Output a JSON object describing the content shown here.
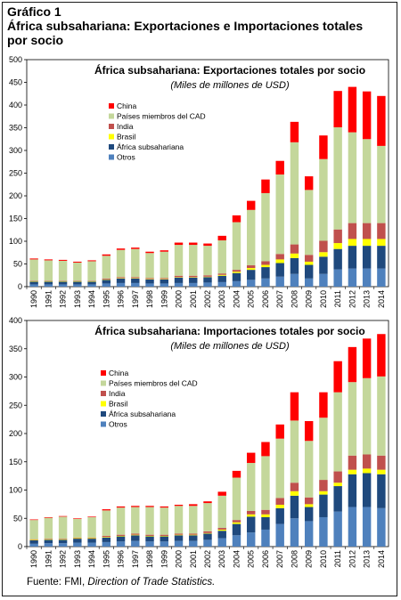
{
  "figure": {
    "label": "Gráfico 1",
    "title": "África subsahariana: Exportaciones e Importaciones totales por socio",
    "source_prefix": "Fuente: FMI, ",
    "source_italic": "Direction of Trade Statistics."
  },
  "colors": {
    "China": "#ff0000",
    "Países miembros del CAD": "#c4d79b",
    "India": "#c0504d",
    "Brasil": "#ffff00",
    "África subsahariana": "#1f497d",
    "Otros": "#4f81bd"
  },
  "chart_data": [
    {
      "type": "bar",
      "stacked": true,
      "title": "África subsahariana: Exportaciones totales por socio",
      "subtitle": "(Miles de millones de USD)",
      "ylim": [
        0,
        500
      ],
      "yticks": [
        0,
        50,
        100,
        150,
        200,
        250,
        300,
        350,
        400,
        450,
        500
      ],
      "grid": false,
      "legend_position": "top-left",
      "categories": [
        "1990",
        "1991",
        "1992",
        "1993",
        "1994",
        "1995",
        "1996",
        "1997",
        "1998",
        "1999",
        "2000",
        "2001",
        "2002",
        "2003",
        "2004",
        "2005",
        "2006",
        "2007",
        "2008",
        "2009",
        "2010",
        "2011",
        "2012",
        "2013",
        "2014"
      ],
      "series": [
        {
          "name": "Otros",
          "values": [
            5,
            5,
            5,
            5,
            5,
            7,
            8,
            8,
            7,
            7,
            8,
            8,
            9,
            10,
            12,
            15,
            18,
            22,
            28,
            18,
            28,
            38,
            40,
            40,
            40
          ]
        },
        {
          "name": "África subsahariana",
          "values": [
            6,
            6,
            6,
            6,
            6,
            8,
            10,
            10,
            9,
            9,
            12,
            12,
            12,
            14,
            18,
            22,
            25,
            30,
            35,
            30,
            38,
            45,
            50,
            50,
            50
          ]
        },
        {
          "name": "Brasil",
          "values": [
            1,
            1,
            1,
            1,
            1,
            1,
            1,
            1,
            1,
            1,
            1,
            1,
            1,
            2,
            3,
            4,
            5,
            8,
            10,
            7,
            10,
            13,
            15,
            15,
            15
          ]
        },
        {
          "name": "India",
          "values": [
            1,
            1,
            1,
            1,
            1,
            2,
            2,
            2,
            2,
            2,
            3,
            3,
            3,
            3,
            4,
            6,
            8,
            12,
            20,
            15,
            25,
            30,
            35,
            35,
            35
          ]
        },
        {
          "name": "Países miembros del CAD",
          "values": [
            47,
            45,
            44,
            40,
            43,
            50,
            60,
            62,
            55,
            58,
            68,
            68,
            65,
            73,
            105,
            122,
            150,
            175,
            225,
            143,
            180,
            225,
            200,
            185,
            170
          ]
        },
        {
          "name": "China",
          "values": [
            2,
            2,
            2,
            2,
            2,
            3,
            3,
            3,
            3,
            3,
            5,
            5,
            5,
            10,
            15,
            20,
            30,
            30,
            45,
            30,
            52,
            80,
            100,
            105,
            110
          ]
        }
      ]
    },
    {
      "type": "bar",
      "stacked": true,
      "title": "África subsahariana: Importaciones totales por socio",
      "subtitle": "(Miles de millones de USD)",
      "ylim": [
        0,
        400
      ],
      "yticks": [
        0,
        50,
        100,
        150,
        200,
        250,
        300,
        350,
        400
      ],
      "grid": false,
      "legend_position": "top-left",
      "categories": [
        "1990",
        "1991",
        "1992",
        "1993",
        "1994",
        "1995",
        "1996",
        "1997",
        "1998",
        "1999",
        "2000",
        "2001",
        "2002",
        "2003",
        "2004",
        "2005",
        "2006",
        "2007",
        "2008",
        "2009",
        "2010",
        "2011",
        "2012",
        "2013",
        "2014"
      ],
      "series": [
        {
          "name": "Otros",
          "values": [
            5,
            6,
            6,
            7,
            7,
            8,
            9,
            10,
            9,
            9,
            10,
            10,
            12,
            15,
            20,
            25,
            30,
            40,
            50,
            45,
            52,
            62,
            70,
            70,
            68
          ]
        },
        {
          "name": "África subsahariana",
          "values": [
            6,
            6,
            6,
            7,
            7,
            8,
            9,
            10,
            9,
            9,
            10,
            10,
            11,
            13,
            20,
            28,
            22,
            28,
            40,
            25,
            40,
            45,
            58,
            60,
            60
          ]
        },
        {
          "name": "Brasil",
          "values": [
            1,
            1,
            1,
            1,
            1,
            1,
            1,
            1,
            1,
            1,
            1,
            1,
            1,
            2,
            3,
            4,
            5,
            6,
            8,
            5,
            6,
            6,
            8,
            8,
            8
          ]
        },
        {
          "name": "India",
          "values": [
            1,
            1,
            1,
            1,
            1,
            2,
            2,
            2,
            2,
            2,
            2,
            2,
            3,
            3,
            4,
            6,
            8,
            12,
            15,
            12,
            20,
            20,
            25,
            25,
            25
          ]
        },
        {
          "name": "Países miembros del CAD",
          "values": [
            34,
            37,
            39,
            33,
            36,
            45,
            48,
            47,
            49,
            48,
            49,
            49,
            50,
            57,
            75,
            85,
            95,
            105,
            110,
            100,
            110,
            140,
            130,
            135,
            140
          ]
        },
        {
          "name": "China",
          "values": [
            1,
            1,
            1,
            1,
            1,
            2,
            2,
            2,
            2,
            2,
            2,
            3,
            3,
            7,
            12,
            18,
            25,
            25,
            50,
            35,
            45,
            55,
            62,
            70,
            75
          ]
        }
      ]
    }
  ]
}
